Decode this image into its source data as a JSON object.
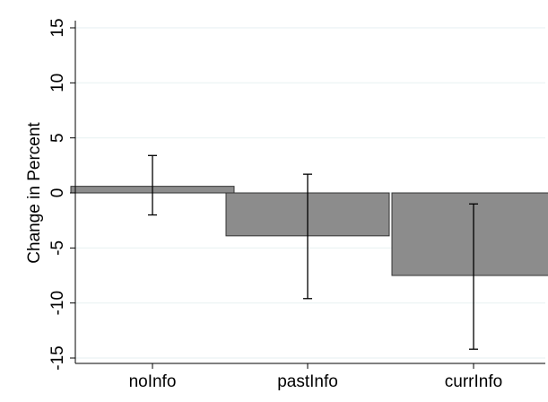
{
  "chart_data": {
    "type": "bar",
    "title": "",
    "xlabel": "",
    "ylabel": "Change in Percent",
    "categories": [
      "noInfo",
      "pastInfo",
      "currInfo"
    ],
    "values": [
      0.6,
      -3.9,
      -7.5
    ],
    "error_low": [
      -2.0,
      -9.6,
      -14.2
    ],
    "error_high": [
      3.4,
      1.7,
      -1.0
    ],
    "ylim": [
      -15,
      15
    ],
    "yticks": [
      -15,
      -10,
      -5,
      0,
      5,
      10,
      15
    ],
    "ytick_labels": [
      "-15",
      "-10",
      "-5",
      "0",
      "5",
      "10",
      "15"
    ],
    "grid": true,
    "colors": {
      "bar_fill": "#8c8c8c",
      "bar_stroke": "#333333",
      "grid": "#eaf2f3",
      "axis": "#000000",
      "error_bar": "#000000"
    }
  }
}
